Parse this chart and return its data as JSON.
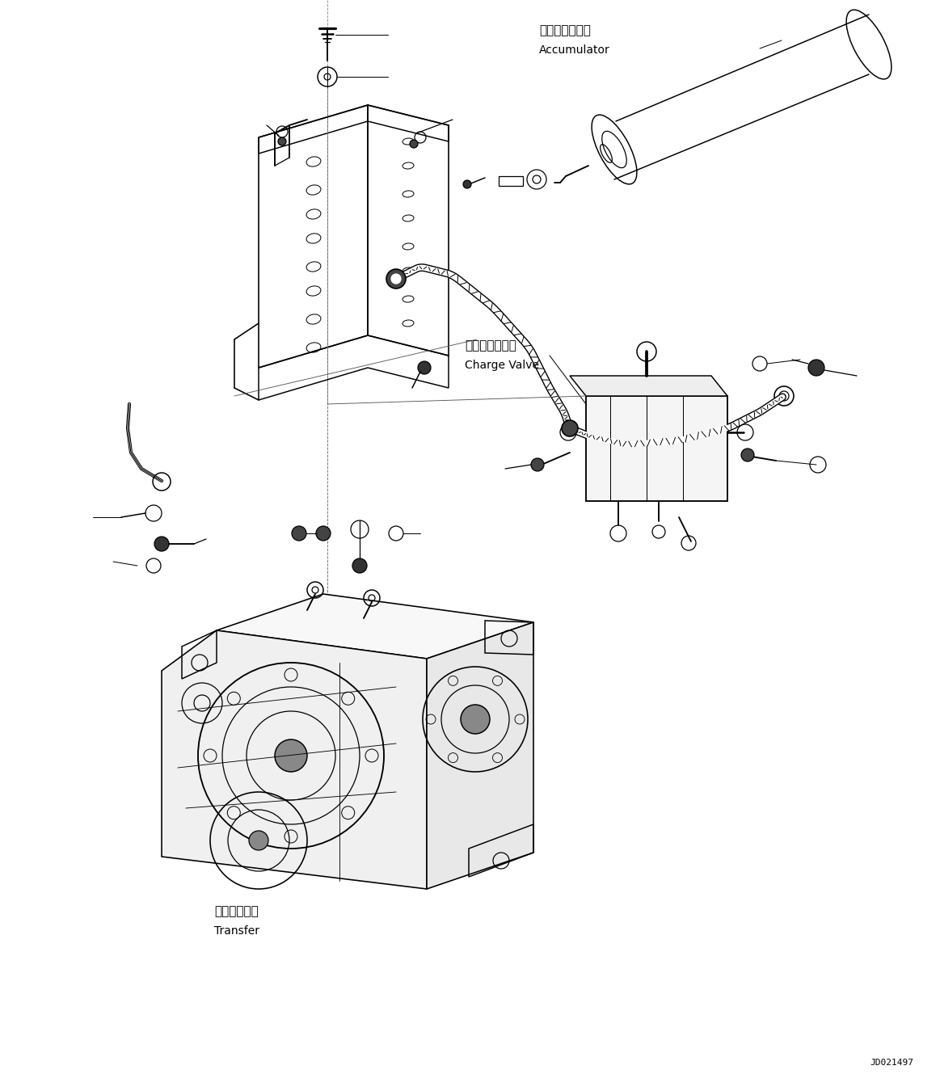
{
  "background_color": "#ffffff",
  "fig_width": 11.63,
  "fig_height": 13.5,
  "dpi": 100,
  "labels": {
    "accumulator_jp": "アキュムレータ",
    "accumulator_en": "Accumulator",
    "charge_valve_jp": "チャージバルブ",
    "charge_valve_en": "Charge Valve",
    "transfer_jp": "トランスファ",
    "transfer_en": "Transfer",
    "part_number": "JD021497"
  },
  "font_size_jp": 10,
  "font_size_en": 9,
  "font_size_part": 8,
  "line_color": "#000000",
  "line_width": 0.9
}
